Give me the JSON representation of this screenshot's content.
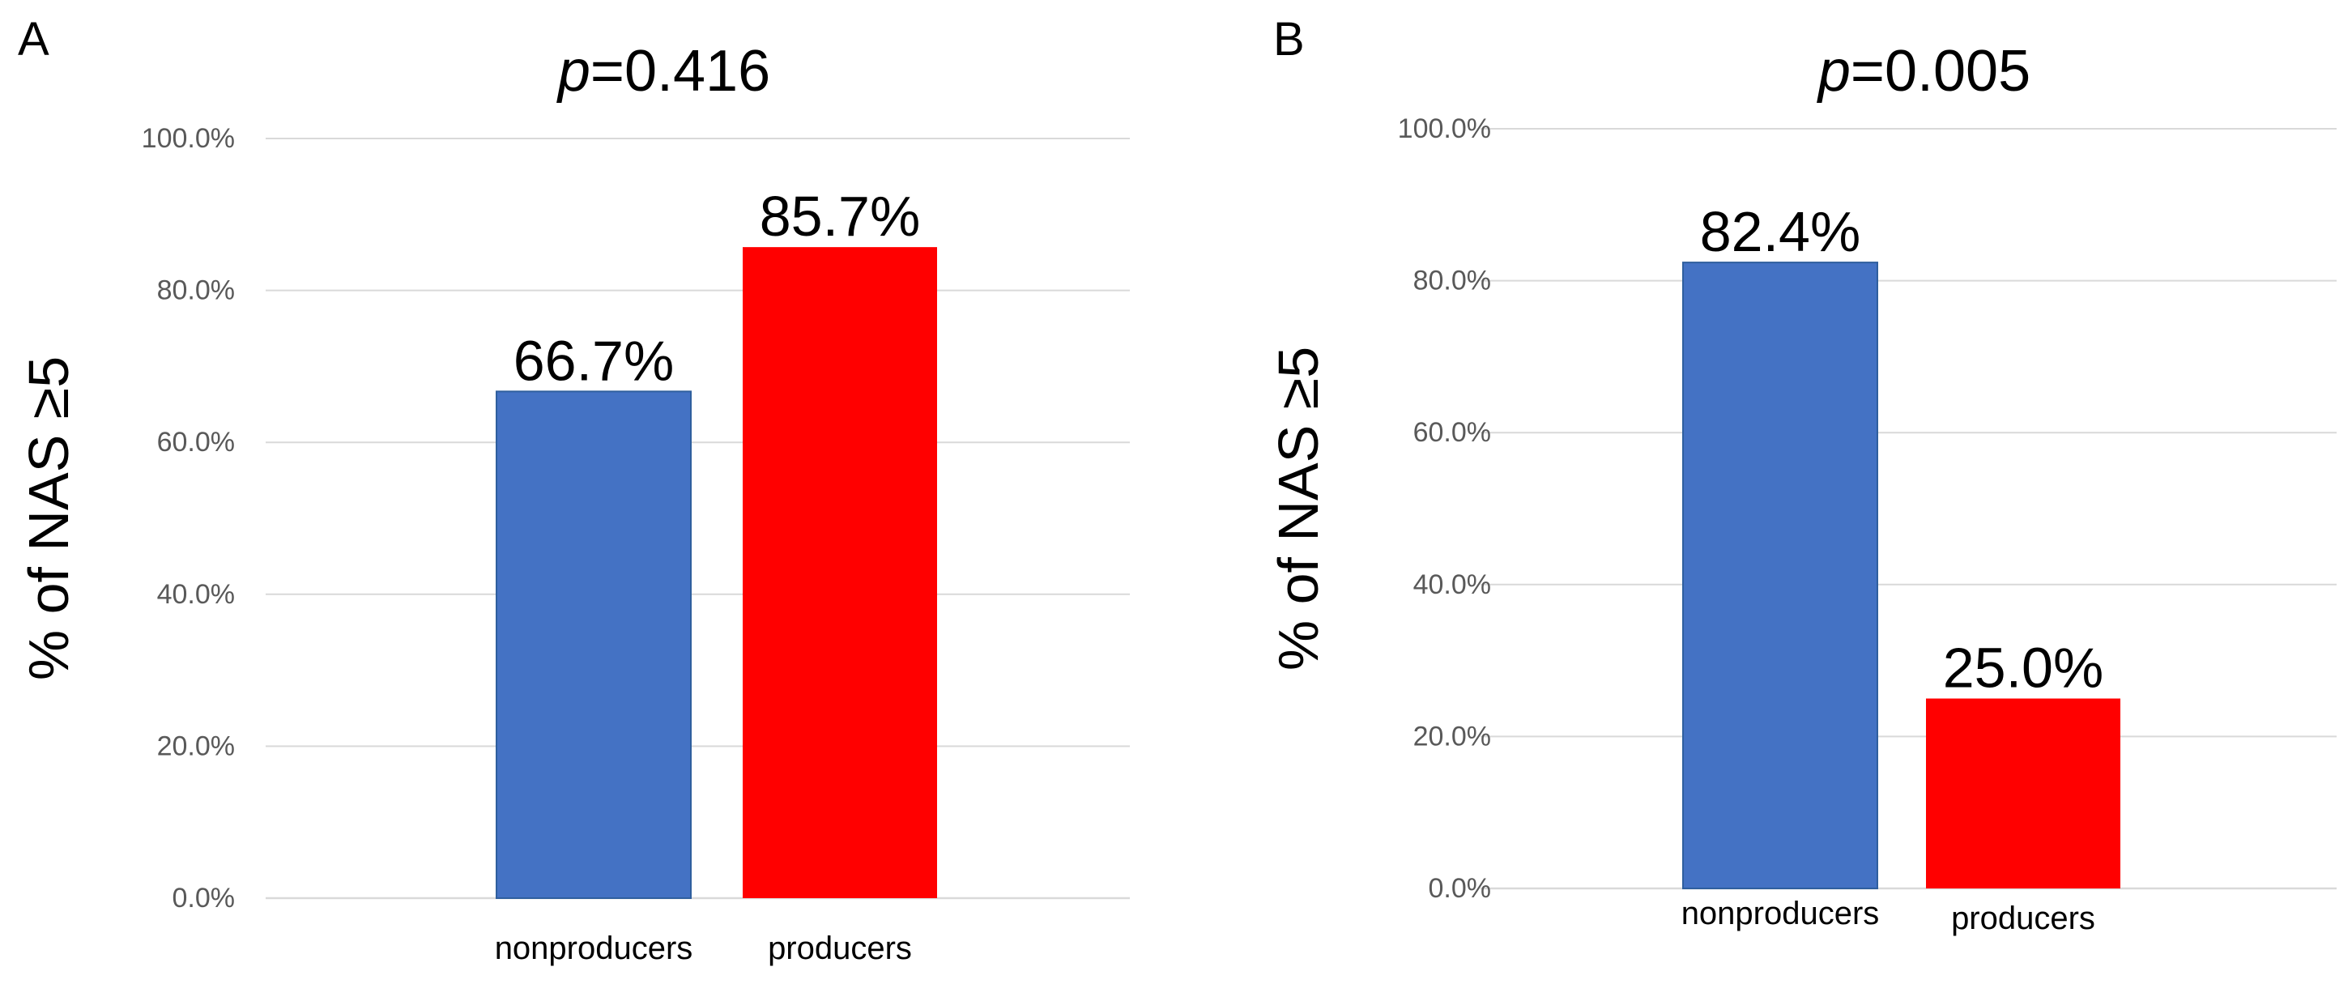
{
  "chart_data": [
    {
      "type": "bar",
      "panel_label": "A",
      "title_prefix": "p",
      "title_value": "=0.416",
      "ylabel": "% of NAS ≥5",
      "xlabel": "",
      "ylim": [
        0,
        100
      ],
      "yticks": [
        0,
        20,
        40,
        60,
        80,
        100
      ],
      "ytick_labels": [
        "0.0%",
        "20.0%",
        "40.0%",
        "60.0%",
        "80.0%",
        "100.0%"
      ],
      "grid": true,
      "categories": [
        "nonproducers",
        "producers"
      ],
      "values": [
        66.7,
        85.7
      ],
      "data_labels": [
        "66.7%",
        "85.7%"
      ],
      "colors": [
        "#4472c4",
        "#ff0000"
      ]
    },
    {
      "type": "bar",
      "panel_label": "B",
      "title_prefix": "p",
      "title_value": "=0.005",
      "ylabel": "% of NAS ≥5",
      "xlabel": "",
      "ylim": [
        0,
        100
      ],
      "yticks": [
        0,
        20,
        40,
        60,
        80,
        100
      ],
      "ytick_labels": [
        "0.0%",
        "20.0%",
        "40.0%",
        "60.0%",
        "80.0%",
        "100.0%"
      ],
      "grid": true,
      "categories": [
        "nonproducers",
        "producers"
      ],
      "values": [
        82.4,
        25.0
      ],
      "data_labels": [
        "82.4%",
        "25.0%"
      ],
      "colors": [
        "#4472c4",
        "#ff0000"
      ]
    }
  ]
}
